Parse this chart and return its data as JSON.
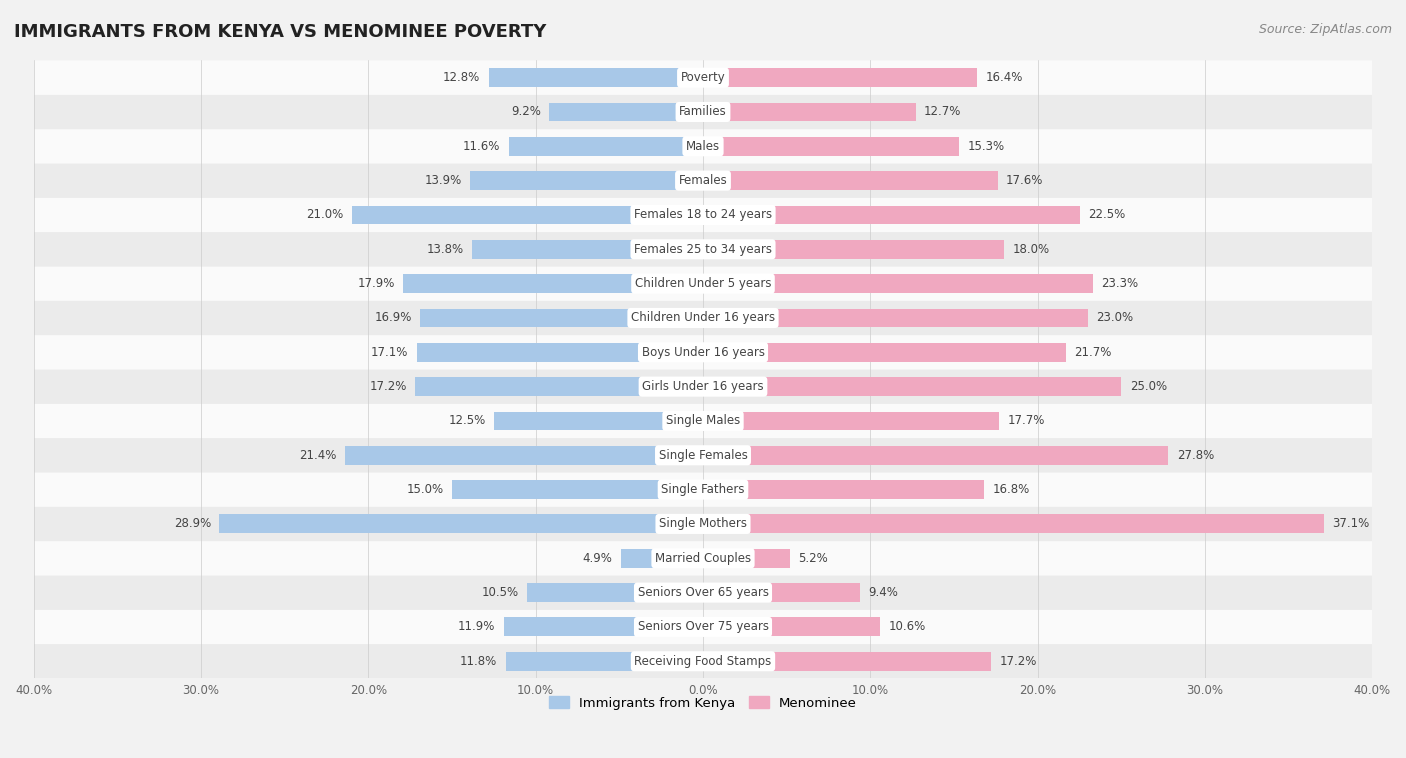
{
  "title": "IMMIGRANTS FROM KENYA VS MENOMINEE POVERTY",
  "source": "Source: ZipAtlas.com",
  "categories": [
    "Poverty",
    "Families",
    "Males",
    "Females",
    "Females 18 to 24 years",
    "Females 25 to 34 years",
    "Children Under 5 years",
    "Children Under 16 years",
    "Boys Under 16 years",
    "Girls Under 16 years",
    "Single Males",
    "Single Females",
    "Single Fathers",
    "Single Mothers",
    "Married Couples",
    "Seniors Over 65 years",
    "Seniors Over 75 years",
    "Receiving Food Stamps"
  ],
  "kenya_values": [
    12.8,
    9.2,
    11.6,
    13.9,
    21.0,
    13.8,
    17.9,
    16.9,
    17.1,
    17.2,
    12.5,
    21.4,
    15.0,
    28.9,
    4.9,
    10.5,
    11.9,
    11.8
  ],
  "menominee_values": [
    16.4,
    12.7,
    15.3,
    17.6,
    22.5,
    18.0,
    23.3,
    23.0,
    21.7,
    25.0,
    17.7,
    27.8,
    16.8,
    37.1,
    5.2,
    9.4,
    10.6,
    17.2
  ],
  "kenya_color": "#a8c8e8",
  "menominee_color": "#f0a8c0",
  "background_color": "#f2f2f2",
  "row_color_light": "#fafafa",
  "row_color_dark": "#ebebeb",
  "axis_max": 40.0,
  "legend_kenya": "Immigrants from Kenya",
  "legend_menominee": "Menominee",
  "title_fontsize": 13,
  "source_fontsize": 9,
  "bar_height": 0.55,
  "label_fontsize": 8.5,
  "category_fontsize": 8.5
}
